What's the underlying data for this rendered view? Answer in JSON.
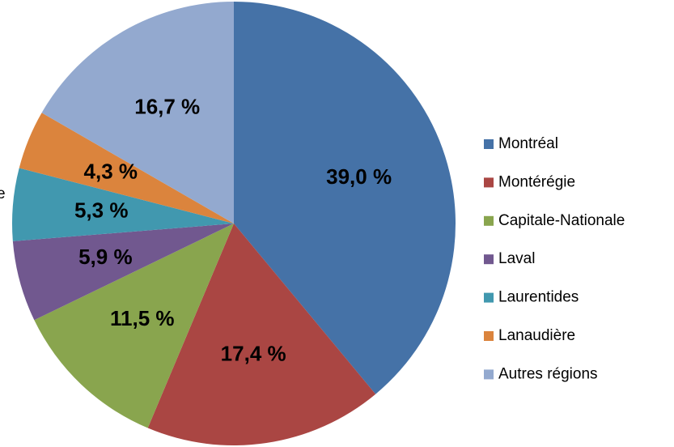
{
  "chart_data": {
    "type": "pie",
    "categories": [
      "Montréal",
      "Montérégie",
      "Capitale-Nationale",
      "Laval",
      "Laurentides",
      "Lanaudière",
      "Autres régions"
    ],
    "values": [
      39.0,
      17.4,
      11.5,
      5.9,
      5.3,
      4.3,
      16.7
    ],
    "value_labels": [
      "39,0 %",
      "17,4 %",
      "11,5 %",
      "5,9 %",
      "5,3 %",
      "4,3 %",
      "16,7 %"
    ],
    "colors": [
      "#4572a7",
      "#aa4643",
      "#89a54e",
      "#71588f",
      "#4198af",
      "#db843d",
      "#93a9cf"
    ],
    "annotation": "e",
    "legend": "right"
  }
}
